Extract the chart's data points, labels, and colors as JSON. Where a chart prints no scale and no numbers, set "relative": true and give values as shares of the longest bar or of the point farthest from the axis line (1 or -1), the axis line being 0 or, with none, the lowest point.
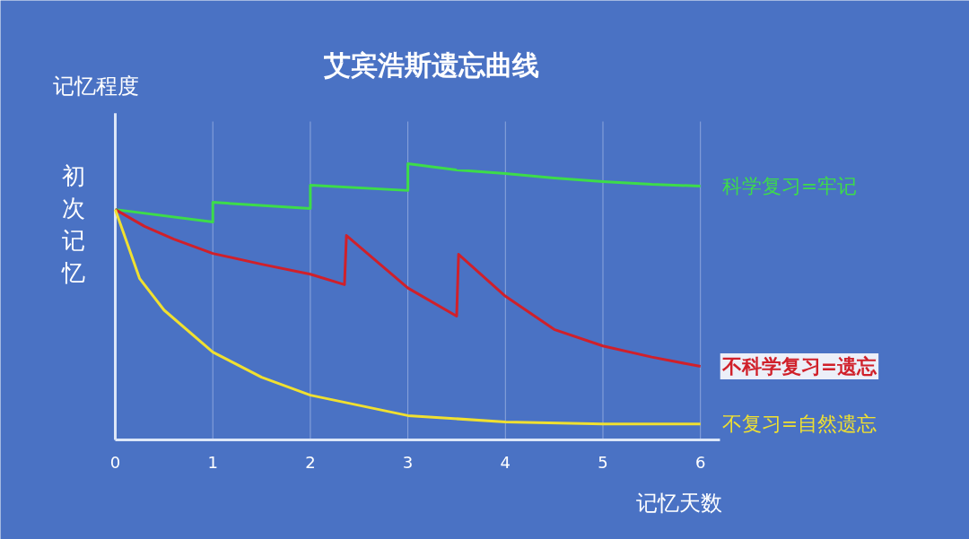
{
  "chart_data": {
    "type": "line",
    "title": "艾宾浩斯遗忘曲线",
    "xlabel": "记忆天数",
    "ylabel": "记忆程度",
    "annotations": [
      "初次记忆"
    ],
    "relative": true,
    "xlim": [
      0,
      6.2
    ],
    "xticks": [
      0,
      1,
      2,
      3,
      4,
      5,
      6
    ],
    "grid": "x",
    "marker": "none",
    "line_style": "solid",
    "series": [
      {
        "name": "科学复习=牢记",
        "color": "#3ddc4a",
        "x": [
          0,
          1,
          1,
          2,
          2,
          3,
          3,
          3.5,
          4,
          4.5,
          5,
          5.5,
          6
        ],
        "values": [
          0.834,
          0.789,
          0.86,
          0.838,
          0.922,
          0.903,
          1.0,
          0.977,
          0.964,
          0.948,
          0.935,
          0.925,
          0.919
        ]
      },
      {
        "name": "不科学复习=遗忘",
        "color": "#d0202a",
        "x": [
          0,
          0.3,
          0.6,
          1,
          1.5,
          2,
          2.35,
          2.37,
          3,
          3.5,
          3.52,
          4,
          4.5,
          5,
          5.5,
          6
        ],
        "values": [
          0.834,
          0.773,
          0.727,
          0.675,
          0.636,
          0.6,
          0.562,
          0.74,
          0.55,
          0.448,
          0.672,
          0.52,
          0.4,
          0.34,
          0.3,
          0.266
        ]
      },
      {
        "name": "不复习=自然遗忘",
        "color": "#f0e030",
        "x": [
          0,
          0.25,
          0.5,
          1,
          1.5,
          2,
          3,
          4,
          5,
          6
        ],
        "values": [
          0.834,
          0.584,
          0.47,
          0.318,
          0.227,
          0.162,
          0.088,
          0.065,
          0.058,
          0.058
        ]
      }
    ]
  }
}
